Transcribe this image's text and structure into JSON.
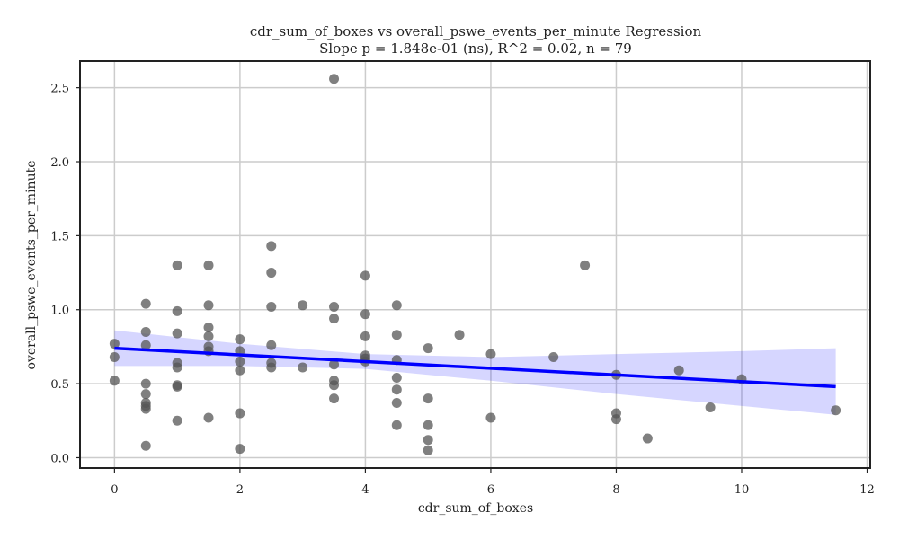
{
  "chart_data": {
    "type": "scatter",
    "title": "cdr_sum_of_boxes vs overall_pswe_events_per_minute Regression",
    "subtitle": "Slope p = 1.848e-01 (ns), R^2 = 0.02, n = 79",
    "xlabel": "cdr_sum_of_boxes",
    "ylabel": "overall_pswe_events_per_minute",
    "xlim": [
      -0.55,
      12.05
    ],
    "ylim": [
      -0.07,
      2.68
    ],
    "xticks": [
      0,
      2,
      4,
      6,
      8,
      10,
      12
    ],
    "xtick_labels": [
      "0",
      "2",
      "4",
      "6",
      "8",
      "10",
      "12"
    ],
    "yticks": [
      0.0,
      0.5,
      1.0,
      1.5,
      2.0,
      2.5
    ],
    "ytick_labels": [
      "0.0",
      "0.5",
      "1.0",
      "1.5",
      "2.0",
      "2.5"
    ],
    "grid": true,
    "points": [
      [
        0,
        0.77
      ],
      [
        0,
        0.68
      ],
      [
        0,
        0.52
      ],
      [
        0.5,
        1.04
      ],
      [
        0.5,
        0.85
      ],
      [
        0.5,
        0.76
      ],
      [
        0.5,
        0.5
      ],
      [
        0.5,
        0.43
      ],
      [
        0.5,
        0.37
      ],
      [
        0.5,
        0.35
      ],
      [
        0.5,
        0.33
      ],
      [
        0.5,
        0.08
      ],
      [
        1,
        1.3
      ],
      [
        1,
        0.99
      ],
      [
        1,
        0.84
      ],
      [
        1,
        0.64
      ],
      [
        1,
        0.61
      ],
      [
        1,
        0.49
      ],
      [
        1,
        0.48
      ],
      [
        1,
        0.25
      ],
      [
        1.5,
        1.3
      ],
      [
        1.5,
        1.03
      ],
      [
        1.5,
        0.88
      ],
      [
        1.5,
        0.82
      ],
      [
        1.5,
        0.75
      ],
      [
        1.5,
        0.72
      ],
      [
        1.5,
        0.27
      ],
      [
        2,
        0.8
      ],
      [
        2,
        0.72
      ],
      [
        2,
        0.65
      ],
      [
        2,
        0.59
      ],
      [
        2,
        0.3
      ],
      [
        2,
        0.06
      ],
      [
        2.5,
        1.43
      ],
      [
        2.5,
        1.25
      ],
      [
        2.5,
        1.02
      ],
      [
        2.5,
        0.76
      ],
      [
        2.5,
        0.64
      ],
      [
        2.5,
        0.61
      ],
      [
        3,
        1.03
      ],
      [
        3,
        0.61
      ],
      [
        3.5,
        2.56
      ],
      [
        3.5,
        1.02
      ],
      [
        3.5,
        0.94
      ],
      [
        3.5,
        0.63
      ],
      [
        3.5,
        0.52
      ],
      [
        3.5,
        0.49
      ],
      [
        3.5,
        0.4
      ],
      [
        4,
        1.23
      ],
      [
        4,
        0.97
      ],
      [
        4,
        0.82
      ],
      [
        4,
        0.69
      ],
      [
        4,
        0.67
      ],
      [
        4,
        0.65
      ],
      [
        4.5,
        1.03
      ],
      [
        4.5,
        0.83
      ],
      [
        4.5,
        0.66
      ],
      [
        4.5,
        0.54
      ],
      [
        4.5,
        0.46
      ],
      [
        4.5,
        0.37
      ],
      [
        4.5,
        0.22
      ],
      [
        5,
        0.74
      ],
      [
        5,
        0.4
      ],
      [
        5,
        0.22
      ],
      [
        5,
        0.12
      ],
      [
        5,
        0.05
      ],
      [
        5.5,
        0.83
      ],
      [
        6,
        0.7
      ],
      [
        6,
        0.27
      ],
      [
        7,
        0.68
      ],
      [
        7.5,
        1.3
      ],
      [
        8,
        0.56
      ],
      [
        8,
        0.3
      ],
      [
        8,
        0.26
      ],
      [
        8.5,
        0.13
      ],
      [
        9,
        0.59
      ],
      [
        9.5,
        0.34
      ],
      [
        10,
        0.53
      ],
      [
        11.5,
        0.32
      ]
    ],
    "regression": {
      "x": [
        0,
        11.5
      ],
      "y": [
        0.74,
        0.48
      ]
    },
    "confidence_band": {
      "x": [
        0,
        2,
        4,
        6,
        8,
        10,
        11.5
      ],
      "upper": [
        0.86,
        0.77,
        0.7,
        0.68,
        0.7,
        0.72,
        0.74
      ],
      "lower": [
        0.62,
        0.62,
        0.6,
        0.52,
        0.43,
        0.35,
        0.29
      ]
    },
    "colors": {
      "points": "#555555",
      "line": "#0000ff",
      "band": "#0000ff",
      "grid": "#cccccc",
      "axes": "#222222"
    }
  }
}
